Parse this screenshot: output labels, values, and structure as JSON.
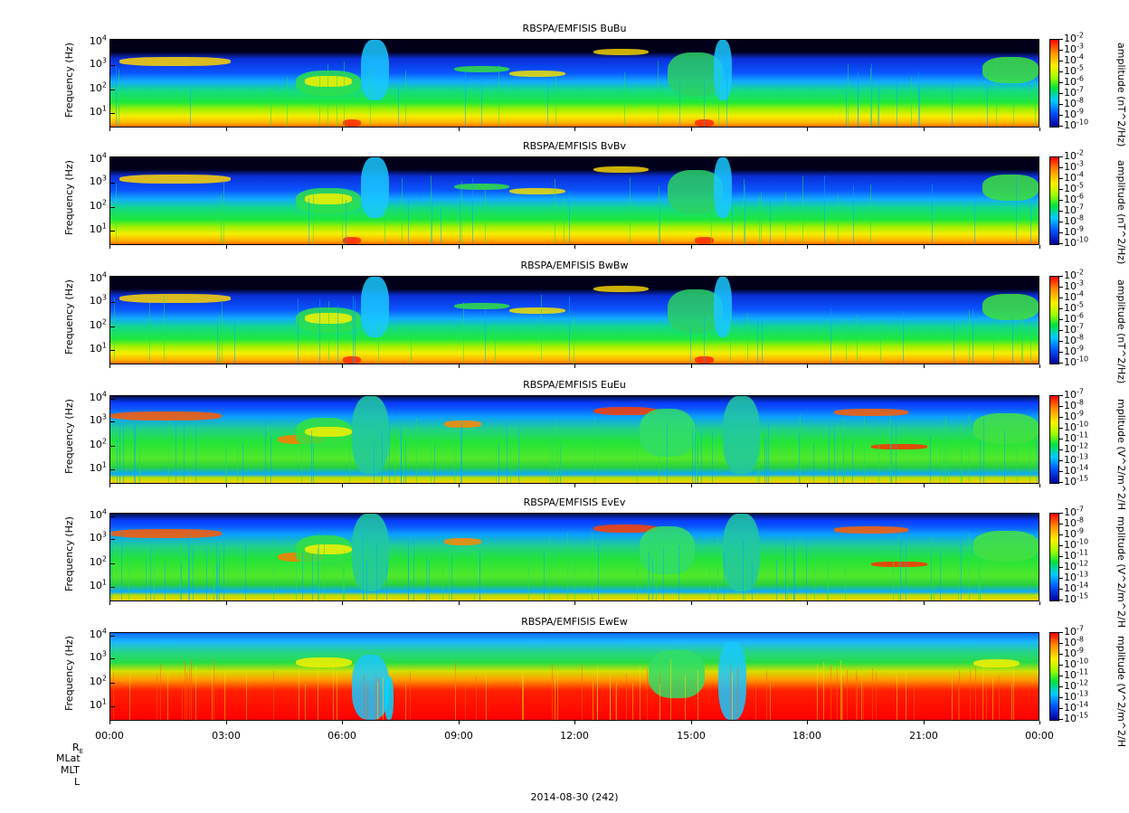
{
  "chart_data": [
    {
      "type": "heatmap",
      "title": "RBSPA/EMFISIS  BuBu",
      "ylabel": "Frequency (Hz)",
      "yticks": [
        "10",
        "10",
        "10",
        "10"
      ],
      "ytick_exps": [
        "1",
        "2",
        "3",
        "4"
      ],
      "colorbar_label": "amplitude (nT^2/Hz)",
      "colorbar_ticks": [
        "-2",
        "-3",
        "-4",
        "-5",
        "-6",
        "-7",
        "-8",
        "-9",
        "-10"
      ],
      "colorbar_base": "10"
    },
    {
      "type": "heatmap",
      "title": "RBSPA/EMFISIS  BvBv",
      "ylabel": "Frequency (Hz)",
      "yticks": [
        "10",
        "10",
        "10",
        "10"
      ],
      "ytick_exps": [
        "1",
        "2",
        "3",
        "4"
      ],
      "colorbar_label": "amplitude (nT^2/Hz)",
      "colorbar_ticks": [
        "-2",
        "-3",
        "-4",
        "-5",
        "-6",
        "-7",
        "-8",
        "-9",
        "-10"
      ],
      "colorbar_base": "10"
    },
    {
      "type": "heatmap",
      "title": "RBSPA/EMFISIS  BwBw",
      "ylabel": "Frequency (Hz)",
      "yticks": [
        "10",
        "10",
        "10",
        "10"
      ],
      "ytick_exps": [
        "1",
        "2",
        "3",
        "4"
      ],
      "colorbar_label": "amplitude (nT^2/Hz)",
      "colorbar_ticks": [
        "-2",
        "-3",
        "-4",
        "-5",
        "-6",
        "-7",
        "-8",
        "-9",
        "-10"
      ],
      "colorbar_base": "10"
    },
    {
      "type": "heatmap",
      "title": "RBSPA/EMFISIS  EuEu",
      "ylabel": "Frequency (Hz)",
      "yticks": [
        "10",
        "10",
        "10",
        "10"
      ],
      "ytick_exps": [
        "1",
        "2",
        "3",
        "4"
      ],
      "colorbar_label": "mplitude (V^2/m^2/H",
      "colorbar_ticks": [
        "-7",
        "-8",
        "-9",
        "-10",
        "-11",
        "-12",
        "-13",
        "-14",
        "-15"
      ],
      "colorbar_base": "10"
    },
    {
      "type": "heatmap",
      "title": "RBSPA/EMFISIS  EvEv",
      "ylabel": "Frequency (Hz)",
      "yticks": [
        "10",
        "10",
        "10",
        "10"
      ],
      "ytick_exps": [
        "1",
        "2",
        "3",
        "4"
      ],
      "colorbar_label": "mplitude (V^2/m^2/H",
      "colorbar_ticks": [
        "-7",
        "-8",
        "-9",
        "-10",
        "-11",
        "-12",
        "-13",
        "-14",
        "-15"
      ],
      "colorbar_base": "10"
    },
    {
      "type": "heatmap",
      "title": "RBSPA/EMFISIS  EwEw",
      "ylabel": "Frequency (Hz)",
      "yticks": [
        "10",
        "10",
        "10",
        "10"
      ],
      "ytick_exps": [
        "1",
        "2",
        "3",
        "4"
      ],
      "colorbar_label": "mplitude (V^2/m^2/H",
      "colorbar_ticks": [
        "-7",
        "-8",
        "-9",
        "-10",
        "-11",
        "-12",
        "-13",
        "-14",
        "-15"
      ],
      "colorbar_base": "10"
    }
  ],
  "x_axis": {
    "ticks": [
      "00:00",
      "03:00",
      "06:00",
      "09:00",
      "12:00",
      "15:00",
      "18:00",
      "21:00",
      "00:00"
    ],
    "label": "2014-08-30 (242)"
  },
  "ephemeris_labels": {
    "re": "R",
    "re_sub": "E",
    "mlat": "MLat",
    "mlt": "MLT",
    "l": "L"
  }
}
